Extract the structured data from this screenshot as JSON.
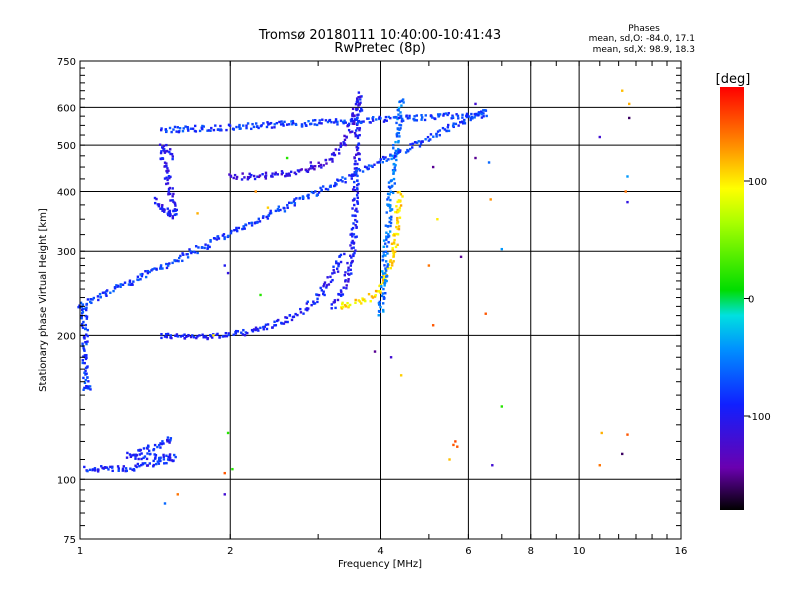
{
  "chart_data": {
    "type": "scatter",
    "title": "Tromsø 20180111 10:40:00-10:41:43",
    "subtitle": "RwPretec (8p)",
    "xlabel": "Frequency [MHz]",
    "ylabel": "Stationary phase Virtual Height [km]",
    "x_scale": "log",
    "y_scale": "log",
    "xlim": [
      1,
      16
    ],
    "ylim": [
      75,
      750
    ],
    "x_ticks": [
      1,
      2,
      4,
      6,
      8,
      10,
      16
    ],
    "y_ticks": [
      75,
      100,
      200,
      300,
      400,
      500,
      600,
      750
    ],
    "x_tick_labels": [
      "1",
      "2",
      "4",
      "6",
      "8",
      "10",
      "16"
    ],
    "y_tick_labels": [
      "75",
      "100",
      "200",
      "300",
      "400",
      "500",
      "600",
      "750"
    ],
    "grid": true,
    "stats": {
      "heading": "Phases",
      "line_o": "mean, sd,O:  -84.0,  17.1",
      "line_x": "mean, sd,X:   98.9,  18.3"
    },
    "colorbar": {
      "label": "[deg]",
      "range": [
        -180,
        180
      ],
      "ticks": [
        100,
        0,
        -100
      ],
      "tick_labels": [
        "100",
        "0",
        "-100"
      ]
    },
    "traces": [
      {
        "name": "",
        "phase": -95,
        "points": [
          [
            1.45,
            200
          ],
          [
            1.55,
            199
          ],
          [
            1.65,
            198
          ],
          [
            1.75,
            199
          ],
          [
            1.85,
            200
          ],
          [
            1.95,
            200
          ],
          [
            2.05,
            201
          ],
          [
            2.15,
            203
          ],
          [
            2.25,
            205
          ],
          [
            2.35,
            208
          ],
          [
            2.45,
            211
          ],
          [
            2.55,
            214
          ],
          [
            2.65,
            218
          ],
          [
            2.75,
            223
          ],
          [
            2.85,
            229
          ],
          [
            2.95,
            236
          ],
          [
            3.05,
            245
          ],
          [
            3.12,
            254
          ],
          [
            3.2,
            265
          ],
          [
            3.28,
            280
          ],
          [
            3.35,
            298
          ]
        ]
      },
      {
        "name": "",
        "phase": -98,
        "points": [
          [
            3.2,
            230
          ],
          [
            3.3,
            240
          ],
          [
            3.4,
            255
          ],
          [
            3.45,
            270
          ],
          [
            3.5,
            290
          ],
          [
            3.52,
            310
          ],
          [
            3.54,
            330
          ],
          [
            3.55,
            350
          ],
          [
            3.56,
            380
          ],
          [
            3.57,
            410
          ],
          [
            3.58,
            440
          ],
          [
            3.59,
            470
          ],
          [
            3.6,
            500
          ],
          [
            3.61,
            530
          ],
          [
            3.62,
            560
          ],
          [
            3.63,
            600
          ],
          [
            3.64,
            640
          ]
        ]
      },
      {
        "name": "",
        "phase": -110,
        "points": [
          [
            2.0,
            430
          ],
          [
            2.2,
            430
          ],
          [
            2.4,
            432
          ],
          [
            2.6,
            436
          ],
          [
            2.8,
            442
          ],
          [
            3.0,
            452
          ],
          [
            3.15,
            465
          ],
          [
            3.25,
            480
          ],
          [
            3.35,
            500
          ],
          [
            3.45,
            530
          ],
          [
            3.52,
            560
          ],
          [
            3.58,
            600
          ],
          [
            3.63,
            640
          ]
        ]
      },
      {
        "name": "",
        "phase": 105,
        "points": [
          [
            3.3,
            230
          ],
          [
            3.5,
            232
          ],
          [
            3.7,
            236
          ],
          [
            3.9,
            243
          ],
          [
            4.0,
            252
          ],
          [
            4.1,
            265
          ],
          [
            4.2,
            285
          ],
          [
            4.27,
            310
          ],
          [
            4.32,
            340
          ],
          [
            4.36,
            370
          ],
          [
            4.38,
            400
          ]
        ]
      },
      {
        "name": "",
        "phase": -55,
        "points": [
          [
            4.0,
            220
          ],
          [
            4.05,
            250
          ],
          [
            4.1,
            300
          ],
          [
            4.15,
            350
          ],
          [
            4.2,
            400
          ],
          [
            4.25,
            450
          ],
          [
            4.3,
            500
          ],
          [
            4.35,
            550
          ],
          [
            4.4,
            600
          ],
          [
            4.45,
            630
          ]
        ]
      },
      {
        "name": "",
        "phase": -90,
        "points": [
          [
            1.02,
            105
          ],
          [
            1.1,
            105
          ],
          [
            1.2,
            105
          ],
          [
            1.3,
            106
          ],
          [
            1.4,
            108
          ],
          [
            1.5,
            110
          ],
          [
            1.55,
            111
          ],
          [
            1.25,
            112
          ],
          [
            1.35,
            115
          ],
          [
            1.45,
            118
          ],
          [
            1.5,
            121
          ],
          [
            1.55,
            123
          ]
        ]
      },
      {
        "name": "",
        "phase": -100,
        "points": [
          [
            1.42,
            385
          ],
          [
            1.45,
            375
          ],
          [
            1.48,
            365
          ],
          [
            1.5,
            358
          ],
          [
            1.53,
            355
          ],
          [
            1.55,
            362
          ],
          [
            1.45,
            500
          ],
          [
            1.5,
            490
          ],
          [
            1.55,
            470
          ]
        ]
      },
      {
        "name": "",
        "phase": -80,
        "points": [
          [
            1.45,
            540
          ],
          [
            1.52,
            538
          ],
          [
            6.45,
            580
          ],
          [
            6.5,
            590
          ],
          [
            1.0,
            230
          ],
          [
            1.02,
            230
          ],
          [
            1.03,
            155
          ],
          [
            1.05,
            155
          ]
        ]
      }
    ],
    "scatter_points": [
      {
        "x": 5.6,
        "y": 118,
        "phase": 150
      },
      {
        "x": 5.65,
        "y": 120,
        "phase": 155
      },
      {
        "x": 5.7,
        "y": 117,
        "phase": 150
      },
      {
        "x": 4.4,
        "y": 165,
        "phase": 110
      },
      {
        "x": 4.2,
        "y": 180,
        "phase": -120
      },
      {
        "x": 3.9,
        "y": 185,
        "phase": -150
      },
      {
        "x": 5.1,
        "y": 210,
        "phase": 150
      },
      {
        "x": 6.5,
        "y": 222,
        "phase": 150
      },
      {
        "x": 7.0,
        "y": 142,
        "phase": 20
      },
      {
        "x": 6.7,
        "y": 107,
        "phase": -120
      },
      {
        "x": 5.5,
        "y": 110,
        "phase": 115
      },
      {
        "x": 11.0,
        "y": 107,
        "phase": 140
      },
      {
        "x": 11.1,
        "y": 125,
        "phase": 120
      },
      {
        "x": 12.2,
        "y": 113,
        "phase": -160
      },
      {
        "x": 12.5,
        "y": 124,
        "phase": 150
      },
      {
        "x": 12.5,
        "y": 380,
        "phase": -110
      },
      {
        "x": 12.5,
        "y": 430,
        "phase": -40
      },
      {
        "x": 12.4,
        "y": 400,
        "phase": 140
      },
      {
        "x": 12.6,
        "y": 570,
        "phase": -160
      },
      {
        "x": 12.6,
        "y": 610,
        "phase": 120
      },
      {
        "x": 12.2,
        "y": 650,
        "phase": 115
      },
      {
        "x": 11.0,
        "y": 520,
        "phase": -120
      },
      {
        "x": 6.2,
        "y": 470,
        "phase": -150
      },
      {
        "x": 6.6,
        "y": 460,
        "phase": -60
      },
      {
        "x": 6.65,
        "y": 385,
        "phase": 130
      },
      {
        "x": 6.2,
        "y": 610,
        "phase": -120
      },
      {
        "x": 7.0,
        "y": 303,
        "phase": -40
      },
      {
        "x": 5.1,
        "y": 450,
        "phase": -150
      },
      {
        "x": 5.2,
        "y": 350,
        "phase": 100
      },
      {
        "x": 5.8,
        "y": 292,
        "phase": -150
      },
      {
        "x": 5.0,
        "y": 280,
        "phase": 140
      },
      {
        "x": 1.98,
        "y": 125,
        "phase": 20
      },
      {
        "x": 2.02,
        "y": 105,
        "phase": 20
      },
      {
        "x": 1.95,
        "y": 103,
        "phase": 150
      },
      {
        "x": 1.95,
        "y": 93,
        "phase": -120
      },
      {
        "x": 1.57,
        "y": 93,
        "phase": 140
      },
      {
        "x": 1.48,
        "y": 89,
        "phase": -60
      },
      {
        "x": 1.72,
        "y": 360,
        "phase": 120
      },
      {
        "x": 1.85,
        "y": 200,
        "phase": 100
      },
      {
        "x": 2.38,
        "y": 370,
        "phase": 110
      },
      {
        "x": 2.25,
        "y": 400,
        "phase": 130
      },
      {
        "x": 2.3,
        "y": 243,
        "phase": 20
      },
      {
        "x": 2.6,
        "y": 470,
        "phase": 20
      },
      {
        "x": 2.9,
        "y": 460,
        "phase": -120
      },
      {
        "x": 1.95,
        "y": 280,
        "phase": -100
      },
      {
        "x": 1.98,
        "y": 270,
        "phase": -110
      }
    ]
  }
}
